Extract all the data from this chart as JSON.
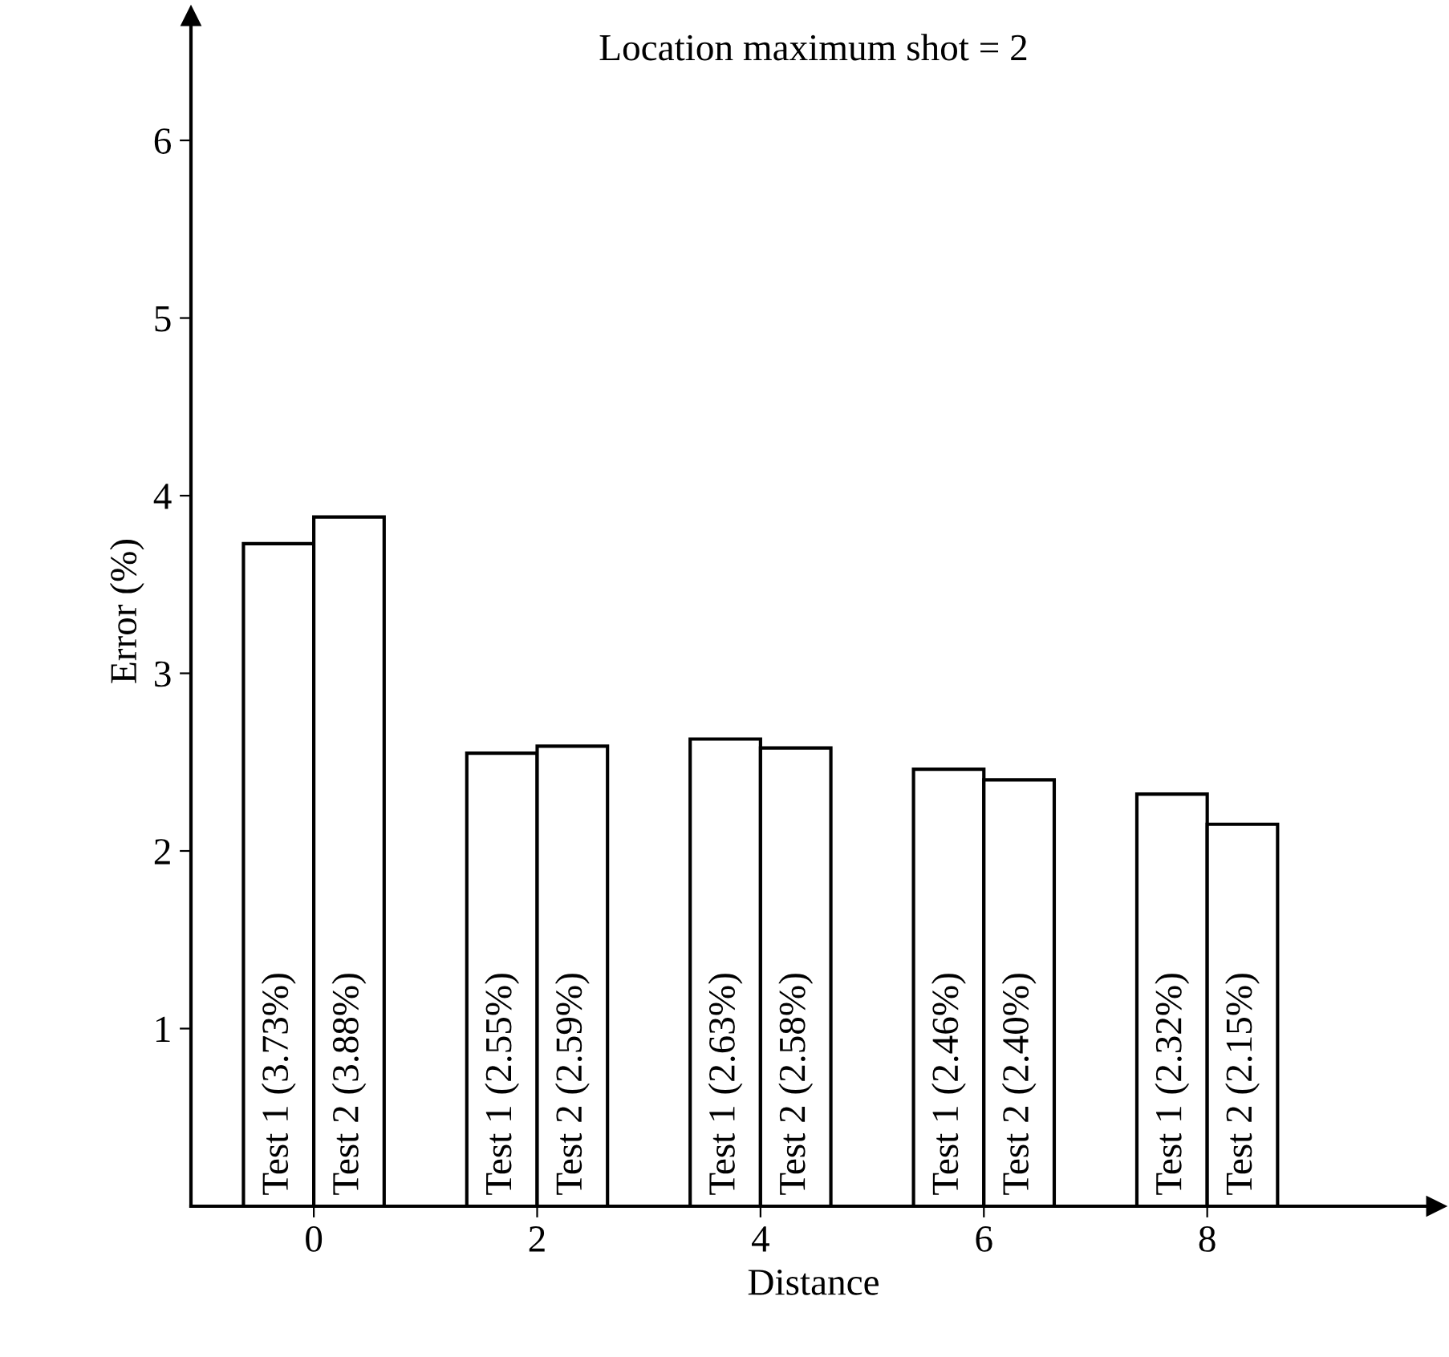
{
  "chart_data": {
    "type": "bar",
    "title": "Location maximum shot = 2",
    "xlabel": "Distance",
    "ylabel": "Error (%)",
    "x": [
      0,
      2,
      4,
      6,
      8
    ],
    "series": [
      {
        "color": "#ffffff",
        "values": [
          3.73,
          2.55,
          2.63,
          2.46,
          2.32
        ],
        "value_labels": [
          "Test 1 (3.73%)",
          "Test 1 (2.55%)",
          "Test 1 (2.63%)",
          "Test 1 (2.46%)",
          "Test 1 (2.32%)"
        ]
      },
      {
        "color": "#ffffff",
        "values": [
          3.88,
          2.59,
          2.58,
          2.4,
          2.15
        ],
        "value_labels": [
          "Test 2 (3.88%)",
          "Test 2 (2.59%)",
          "Test 2 (2.58%)",
          "Test 2 (2.40%)",
          "Test 2 (2.15%)"
        ]
      }
    ],
    "xlim": [
      -1.1,
      10.05
    ],
    "xticks": [
      0,
      2,
      4,
      6,
      8
    ],
    "ylim": [
      0,
      6.7
    ],
    "yticks": [
      1,
      2,
      3,
      4,
      5,
      6
    ],
    "grid": false,
    "legend": false
  }
}
